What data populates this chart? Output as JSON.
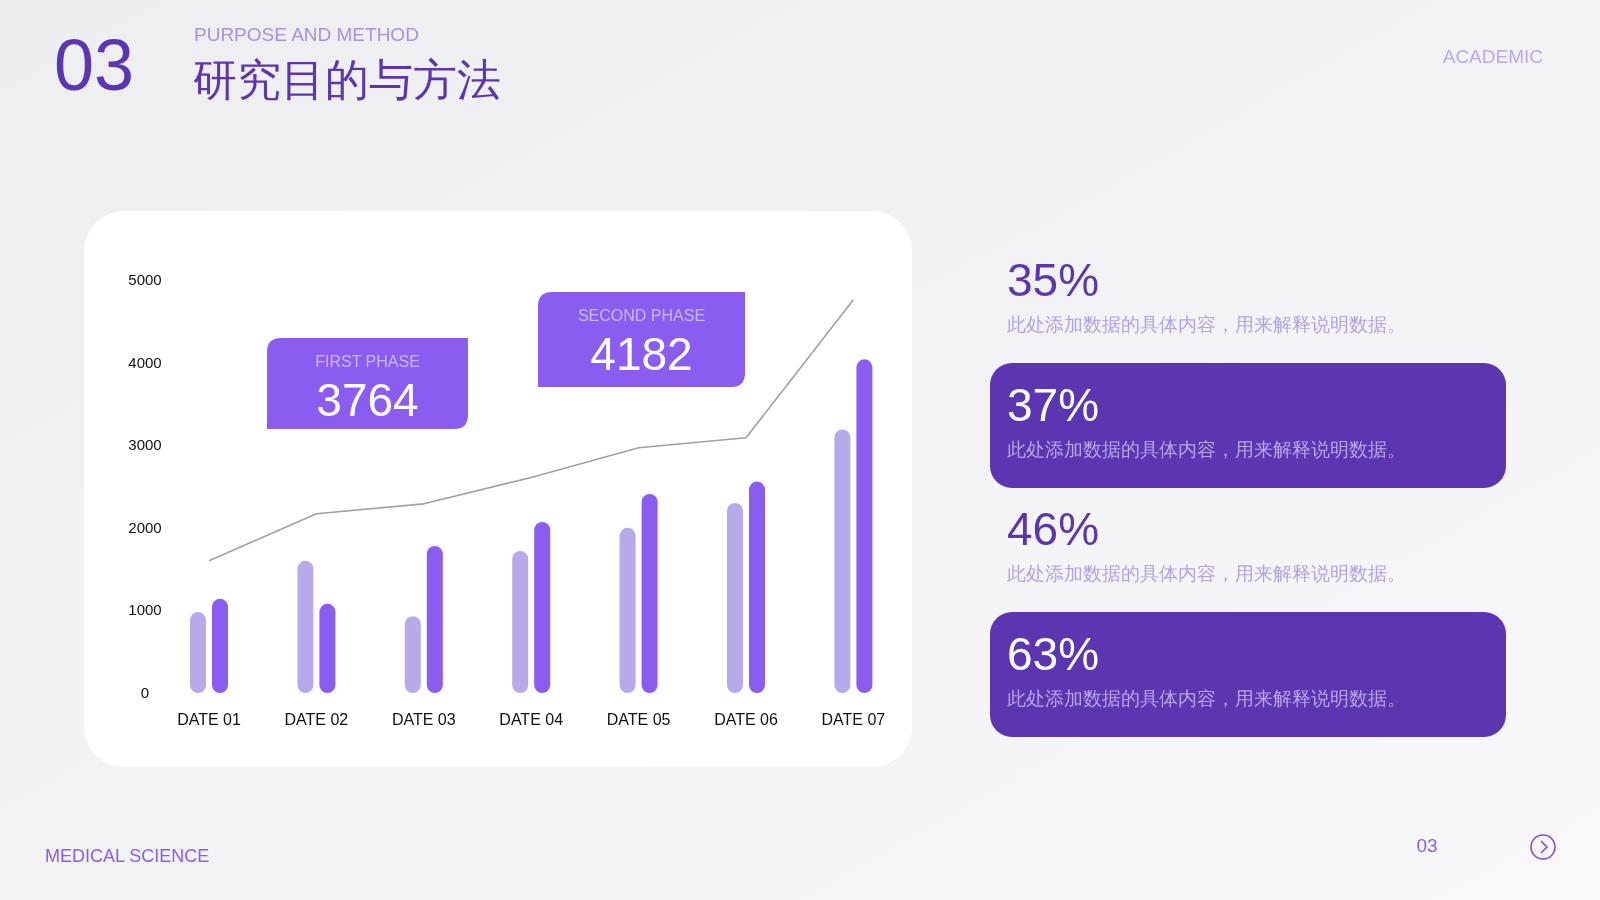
{
  "chart_data": [
    {
      "type": "bar",
      "title": "研究目的与方法",
      "subtitle": "PURPOSE AND METHOD",
      "annotations": [
        "03",
        "ACADEMIC",
        "FIRST PHASE",
        "3764",
        "SECOND PHASE",
        "4182",
        "MEDICAL SCIENCE",
        "03"
      ],
      "categories": [
        "DATE 01",
        "DATE 02",
        "DATE 03",
        "DATE 04",
        "DATE 05",
        "DATE 06",
        "DATE 07"
      ],
      "series": [
        {
          "color": "#b8a9ea",
          "values": [
            980,
            1600,
            930,
            1720,
            2000,
            2300,
            3190
          ]
        },
        {
          "color": "#8b5cf0",
          "values": [
            1140,
            1080,
            1780,
            2070,
            2410,
            2560,
            4040
          ]
        },
        {
          "type": "line",
          "color": "#a0a0a0",
          "values": [
            1600,
            2170,
            2290,
            2610,
            2970,
            3090,
            4760
          ]
        }
      ],
      "ylim": [
        0,
        5000
      ],
      "yticks": [
        0,
        1000,
        2000,
        3000,
        4000,
        5000
      ]
    },
    {
      "type": "other",
      "annotations": [
        "35%",
        "此处添加数据的具体内容，用来解释说明数据。",
        "37%",
        "此处添加数据的具体内容，用来解释说明数据。",
        "46%",
        "此处添加数据的具体内容，用来解释说明数据。",
        "63%",
        "此处添加数据的具体内容，用来解释说明数据。"
      ]
    }
  ]
}
